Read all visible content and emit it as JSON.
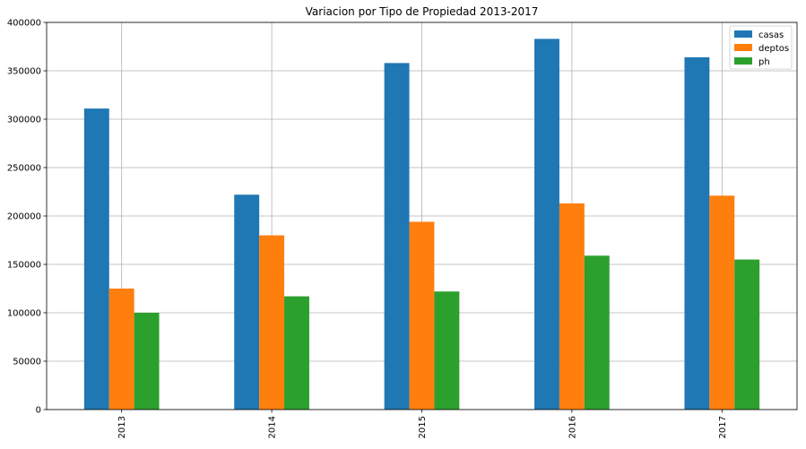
{
  "chart_data": {
    "type": "bar",
    "title": "Variacion por Tipo de Propiedad 2013-2017",
    "xlabel": "",
    "ylabel": "",
    "categories": [
      "2013",
      "2014",
      "2015",
      "2016",
      "2017"
    ],
    "series": [
      {
        "name": "casas",
        "color": "#1f77b4",
        "values": [
          311000,
          222000,
          358000,
          383000,
          364000
        ]
      },
      {
        "name": "deptos",
        "color": "#ff7f0e",
        "values": [
          125000,
          180000,
          194000,
          213000,
          221000
        ]
      },
      {
        "name": "ph",
        "color": "#2ca02c",
        "values": [
          100000,
          117000,
          122000,
          159000,
          155000
        ]
      }
    ],
    "ylim": [
      0,
      400000
    ],
    "yticks": [
      "0",
      "50000",
      "100000",
      "150000",
      "200000",
      "250000",
      "300000",
      "350000",
      "400000"
    ],
    "grid": true,
    "legend_position": "top-right",
    "x_tick_rotation": "vertical"
  }
}
